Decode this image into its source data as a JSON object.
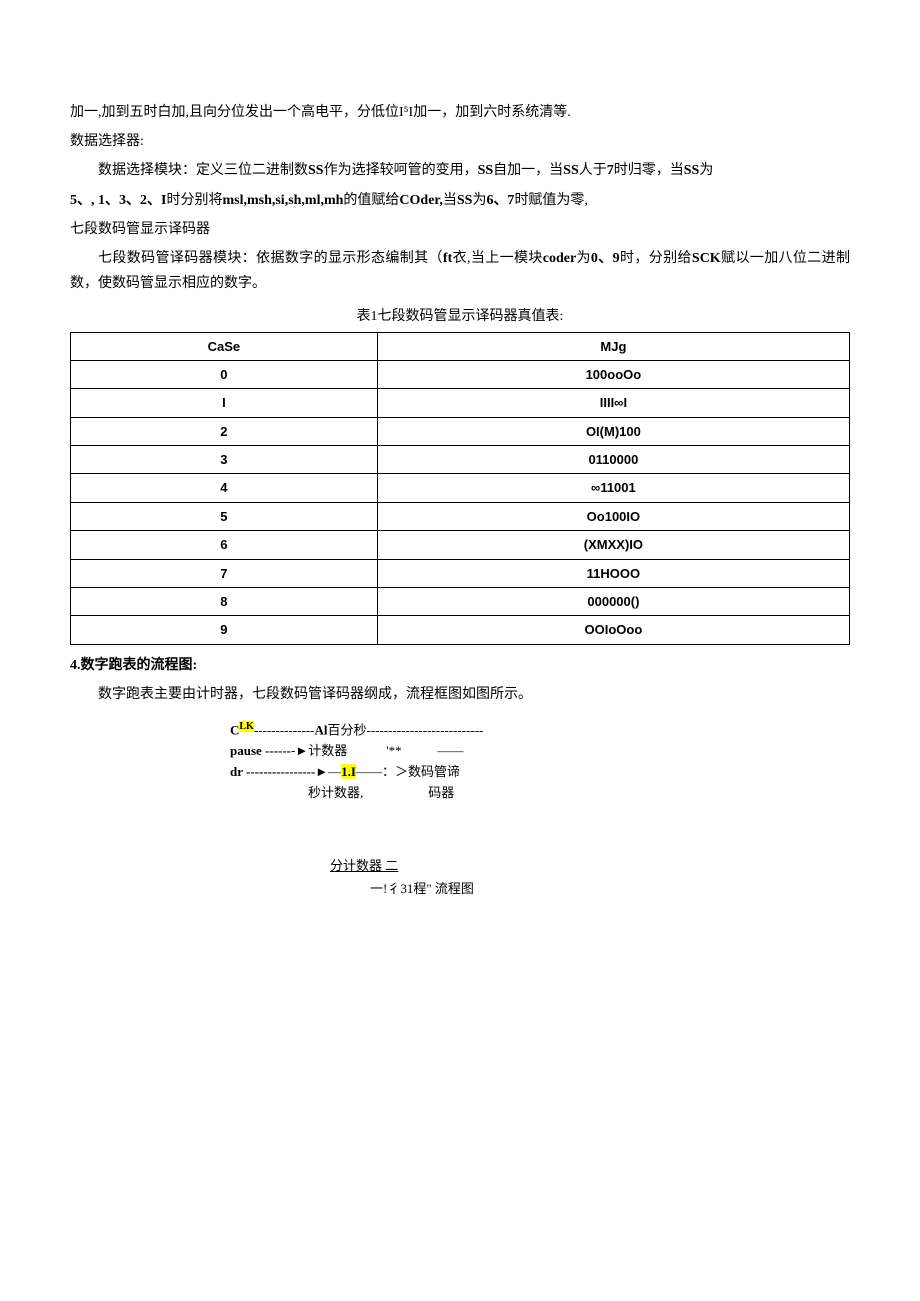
{
  "para1": "加一,加到五时白加,且向分位发出一个高电平，分低位I⁵I加一，加到六时系统清等.",
  "para2_title": "数据选择器:",
  "para2_body_a": "数据选择模块：定义三位二进制数",
  "para2_bold1": "SS",
  "para2_body_b": "作为选择较呵管的变用，",
  "para2_bold2": "SS",
  "para2_body_c": "自加一，当",
  "para2_bold3": "SS",
  "para2_body_d": "人于",
  "para2_bold4": "7",
  "para2_body_e": "时归零，当",
  "para2_bold5": "SS",
  "para2_body_f": "为",
  "para3_bold1": "5、, 1、3、2、I",
  "para3_body_a": "时分别将",
  "para3_bold2": "msl,msh,si,sh,ml,mh",
  "para3_body_b": "的值赋给",
  "para3_bold3": "COder,",
  "para3_body_c": "当",
  "para3_bold4": "SS",
  "para3_body_d": "为",
  "para3_bold5": "6、7",
  "para3_body_e": "时赋值为零,",
  "para4_title": "七段数码管显示译码器",
  "para4_body_a": "七段数码管译码器模块：依据数字的显示形态编制其（",
  "para4_bold1": "ft",
  "para4_body_b": "衣,当上一模块",
  "para4_bold2": "coder",
  "para4_body_c": "为",
  "para4_bold3": "0、9",
  "para4_body_d": "时，分别给",
  "para4_bold4": "SCK",
  "para4_body_e": "赋以一加八位二进制数，使数码管显示相应的数字。",
  "table_caption": "表1七段数码管显示译码器真值表:",
  "table": {
    "headers": [
      "CaSe",
      "MJg"
    ],
    "rows": [
      [
        "0",
        "100ooOo"
      ],
      [
        "I",
        "IIII∞I"
      ],
      [
        "2",
        "OI(M)100"
      ],
      [
        "3",
        "0110000"
      ],
      [
        "4",
        "∞11001"
      ],
      [
        "5",
        "Oo100IO"
      ],
      [
        "6",
        "(XMXX)IO"
      ],
      [
        "7",
        "11HOOO"
      ],
      [
        "8",
        "000000()"
      ],
      [
        "9",
        "OOIoOoo"
      ]
    ]
  },
  "section4_title": "4.数字跑表的流程图:",
  "section4_body": "数字跑表主要由计时器，七段数码管译码器纲成，流程框图如图所示。",
  "flow": {
    "line1_a": "C",
    "line1_sup": "LK",
    "line1_b": "--------------",
    "line1_c": "Al",
    "line1_d": "百分秒",
    "line1_e": "---------------------------",
    "line2_a": "pause ------",
    "line2_arrow": "-►",
    "line2_b": "计数器",
    "line2_c": "            '**           ——",
    "line3_a": "dr ----------------",
    "line3_arrow": "►",
    "line3_b": "—",
    "line3_hl": "1.I",
    "line3_c": "——：＞数码管谛",
    "line4": "                        秒计数器,                    码器",
    "sub_line": "分计数器            二",
    "caption": "一!彳31程\" 流程图"
  }
}
